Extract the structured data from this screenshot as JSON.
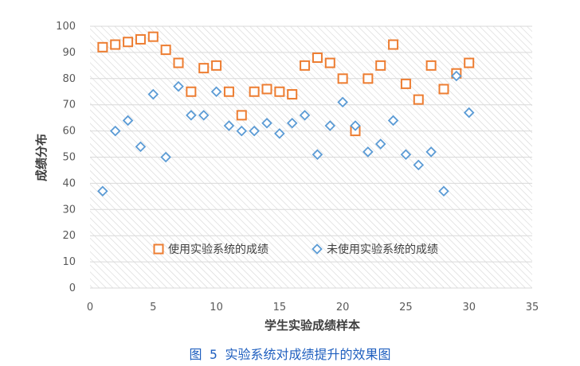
{
  "chart_data": {
    "type": "scatter",
    "xlabel": "学生实验成绩样本",
    "ylabel": "成绩分布",
    "xlim": [
      0,
      35
    ],
    "ylim": [
      0,
      100
    ],
    "x_ticks": [
      0,
      5,
      10,
      15,
      20,
      25,
      30,
      35
    ],
    "y_ticks": [
      0,
      10,
      20,
      30,
      40,
      50,
      60,
      70,
      80,
      90,
      100
    ],
    "grid": true,
    "legend_position": "bottom-center",
    "series": [
      {
        "name": "使用实验系统的成绩",
        "marker": "square",
        "color": "#ED7D31",
        "x": [
          1,
          2,
          3,
          4,
          5,
          6,
          7,
          8,
          9,
          10,
          11,
          12,
          13,
          14,
          15,
          16,
          17,
          18,
          19,
          20,
          21,
          22,
          23,
          24,
          25,
          26,
          27,
          28,
          29,
          30
        ],
        "y": [
          92,
          93,
          94,
          95,
          96,
          91,
          86,
          75,
          84,
          85,
          75,
          66,
          75,
          76,
          75,
          74,
          85,
          88,
          86,
          80,
          60,
          80,
          85,
          93,
          78,
          72,
          85,
          76,
          82,
          86
        ]
      },
      {
        "name": "未使用实验系统的成绩",
        "marker": "diamond",
        "color": "#5B9BD5",
        "x": [
          1,
          2,
          3,
          4,
          5,
          6,
          7,
          8,
          9,
          10,
          11,
          12,
          13,
          14,
          15,
          16,
          17,
          18,
          19,
          20,
          21,
          22,
          23,
          24,
          25,
          26,
          27,
          28,
          29,
          30
        ],
        "y": [
          37,
          60,
          64,
          54,
          74,
          50,
          77,
          66,
          66,
          75,
          62,
          60,
          60,
          63,
          59,
          63,
          66,
          51,
          62,
          71,
          62,
          52,
          55,
          64,
          51,
          47,
          52,
          37,
          81,
          67
        ]
      }
    ]
  },
  "caption": "图 5 实验系统对成绩提升的效果图"
}
